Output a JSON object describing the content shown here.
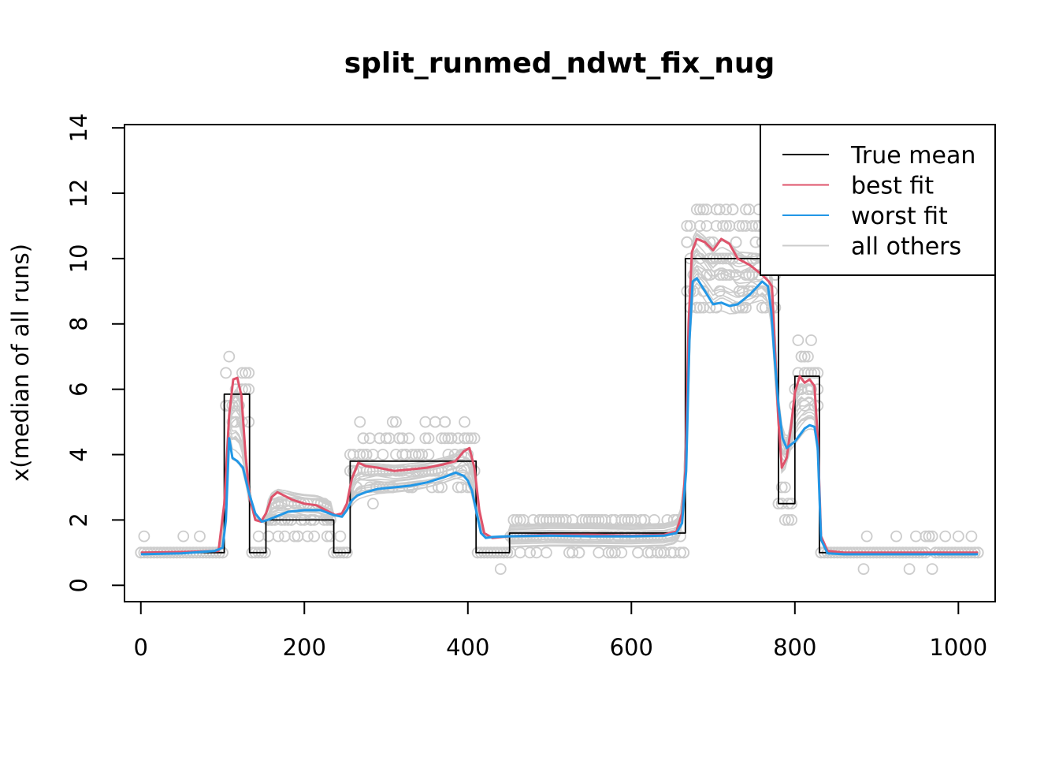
{
  "chart_data": {
    "type": "line",
    "title": "split_runmed_ndwt_fix_nug",
    "xlabel": "",
    "ylabel": "x(median of all runs)",
    "xlim": [
      -20,
      1045
    ],
    "ylim": [
      -0.5,
      14.1
    ],
    "x_ticks": [
      0,
      200,
      400,
      600,
      800,
      1000
    ],
    "y_ticks": [
      0,
      2,
      4,
      6,
      8,
      10,
      12,
      14
    ],
    "grid": false,
    "legend": {
      "position": "top-right",
      "entries": [
        {
          "label": "True mean",
          "color": "#000000"
        },
        {
          "label": "best fit",
          "color": "#DF536B"
        },
        {
          "label": "worst fit",
          "color": "#2297E6"
        },
        {
          "label": "all others",
          "color": "#CCCCCC"
        }
      ]
    },
    "colors": {
      "true_mean": "#000000",
      "best_fit": "#DF536B",
      "worst_fit": "#2297E6",
      "others": "#CCCCCC",
      "points": "#CCCCCC"
    },
    "series": [
      {
        "name": "True mean",
        "style": "step",
        "x": [
          0,
          102,
          102,
          133,
          133,
          153,
          153,
          236,
          236,
          256,
          256,
          410,
          410,
          451,
          451,
          666,
          666,
          780,
          780,
          800,
          800,
          830,
          830,
          1024
        ],
        "y": [
          1,
          1,
          5.85,
          5.85,
          1,
          1,
          2,
          2,
          1,
          1,
          3.8,
          3.8,
          1,
          1,
          1.6,
          1.6,
          10,
          10,
          2.5,
          2.5,
          6.4,
          6.4,
          1,
          1
        ]
      },
      {
        "name": "best fit",
        "x": [
          0,
          50,
          95,
          102,
          108,
          113,
          118,
          123,
          128,
          133,
          140,
          147,
          153,
          160,
          167,
          175,
          185,
          200,
          215,
          230,
          238,
          246,
          252,
          258,
          266,
          275,
          290,
          310,
          330,
          350,
          370,
          385,
          395,
          402,
          408,
          414,
          420,
          430,
          450,
          500,
          550,
          600,
          640,
          655,
          662,
          666,
          670,
          674,
          680,
          690,
          700,
          710,
          720,
          730,
          745,
          760,
          768,
          772,
          776,
          780,
          784,
          790,
          795,
          800,
          806,
          812,
          818,
          824,
          828,
          832,
          840,
          860,
          900,
          1000,
          1024
        ],
        "y": [
          1,
          1.02,
          1.05,
          2.5,
          5.2,
          6.3,
          6.35,
          5.8,
          4.0,
          2.7,
          2.0,
          1.95,
          2.2,
          2.7,
          2.85,
          2.75,
          2.62,
          2.5,
          2.45,
          2.25,
          2.15,
          2.2,
          2.5,
          3.25,
          3.75,
          3.65,
          3.6,
          3.5,
          3.55,
          3.6,
          3.7,
          3.8,
          4.1,
          4.2,
          3.6,
          2.3,
          1.6,
          1.45,
          1.5,
          1.55,
          1.55,
          1.52,
          1.55,
          1.65,
          2.2,
          3.5,
          8.0,
          10.2,
          10.6,
          10.5,
          10.25,
          10.6,
          10.45,
          10.0,
          9.8,
          9.5,
          9.3,
          9.15,
          7.0,
          5.0,
          3.6,
          3.9,
          4.8,
          5.9,
          6.4,
          6.2,
          6.3,
          6.1,
          4.5,
          1.5,
          1.05,
          1.0,
          1.0,
          1.0,
          1.0
        ]
      },
      {
        "name": "worst fit",
        "x": [
          0,
          50,
          90,
          100,
          104,
          108,
          112,
          118,
          125,
          132,
          140,
          148,
          155,
          165,
          180,
          200,
          220,
          236,
          246,
          252,
          258,
          265,
          275,
          290,
          310,
          330,
          350,
          370,
          385,
          395,
          400,
          405,
          410,
          416,
          422,
          430,
          450,
          500,
          550,
          600,
          640,
          655,
          662,
          667,
          671,
          675,
          680,
          690,
          700,
          710,
          720,
          730,
          745,
          760,
          767,
          771,
          775,
          780,
          785,
          790,
          795,
          800,
          806,
          812,
          818,
          824,
          828,
          832,
          840,
          860,
          900,
          1000,
          1024
        ],
        "y": [
          0.95,
          0.98,
          1.05,
          1.15,
          2.0,
          4.5,
          3.9,
          3.8,
          3.6,
          2.85,
          2.2,
          1.95,
          2.0,
          2.1,
          2.25,
          2.3,
          2.3,
          2.15,
          2.1,
          2.3,
          2.6,
          2.75,
          2.85,
          2.95,
          3.0,
          3.05,
          3.15,
          3.3,
          3.45,
          3.35,
          3.2,
          2.9,
          2.3,
          1.6,
          1.45,
          1.48,
          1.5,
          1.52,
          1.5,
          1.5,
          1.52,
          1.6,
          1.9,
          3.5,
          7.5,
          9.3,
          9.4,
          9.0,
          8.6,
          8.65,
          8.55,
          8.6,
          8.9,
          9.3,
          9.15,
          8.4,
          7.0,
          5.5,
          4.5,
          4.2,
          4.3,
          4.4,
          4.6,
          4.8,
          4.9,
          4.85,
          4.2,
          1.4,
          0.98,
          0.95,
          0.95,
          0.95,
          0.95
        ]
      }
    ]
  }
}
